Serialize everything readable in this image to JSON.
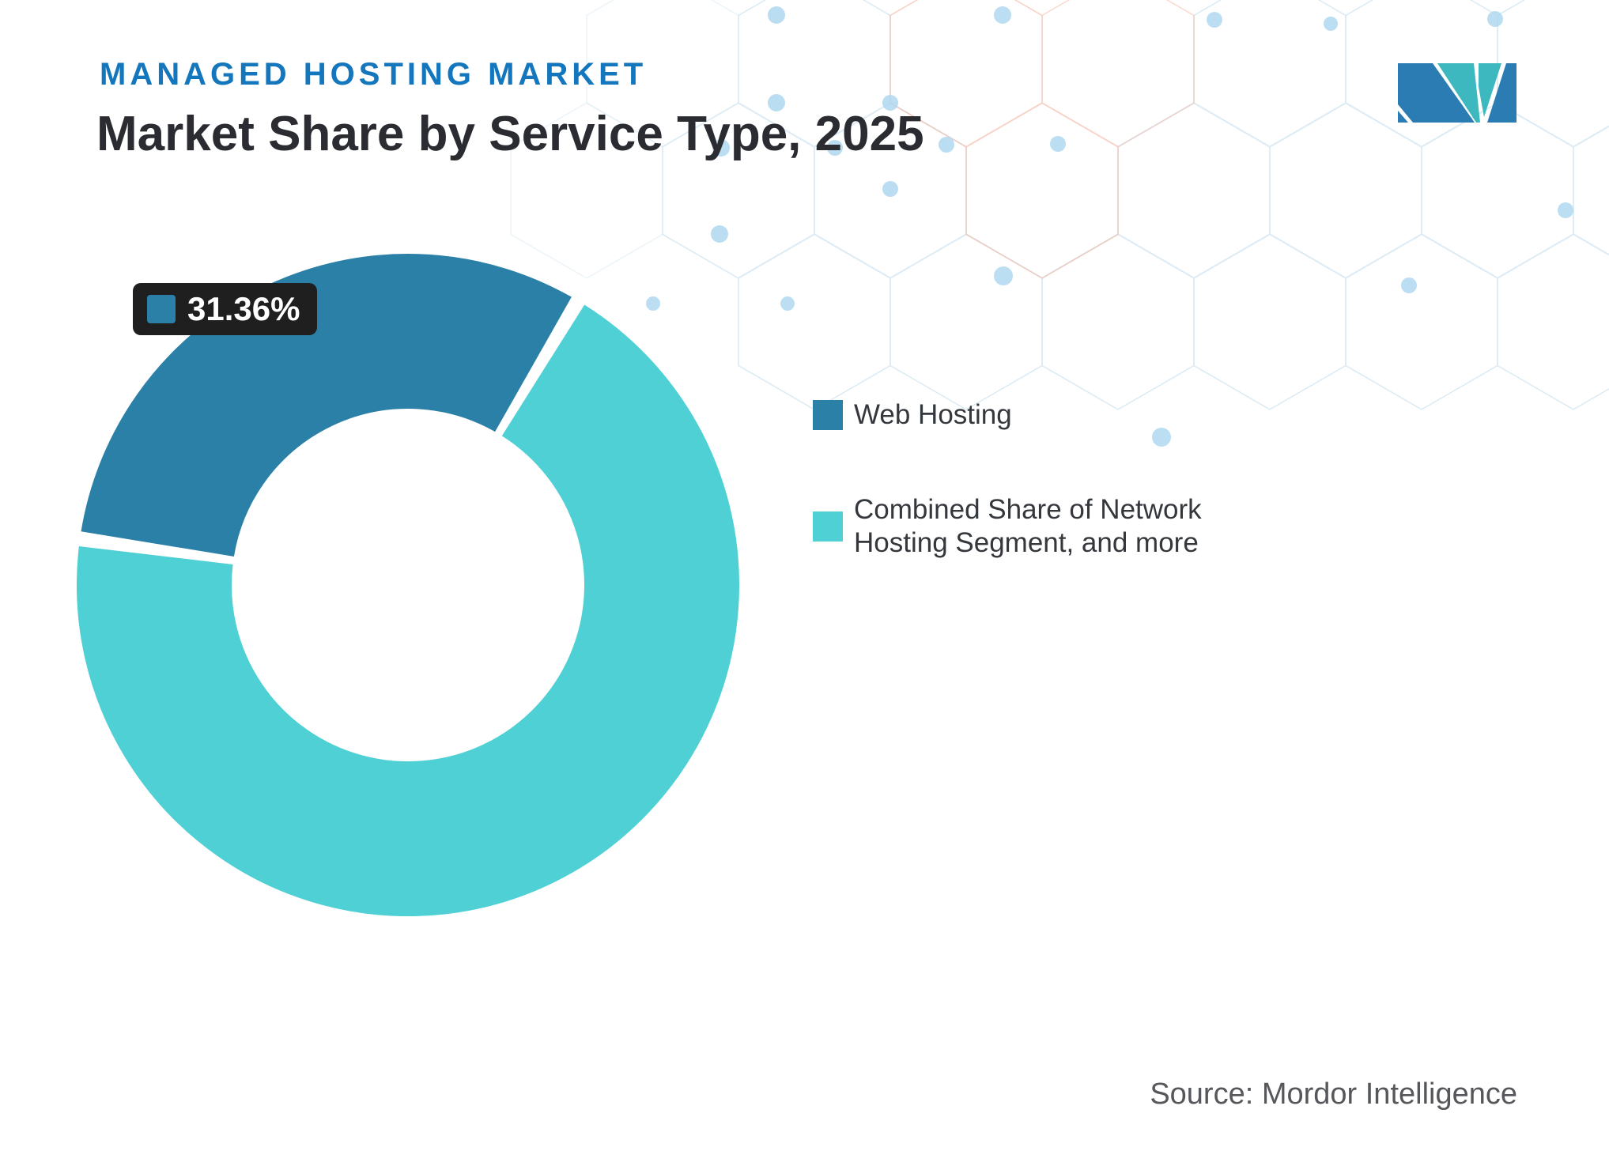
{
  "header": {
    "eyebrow": "MANAGED HOSTING MARKET",
    "title": "Market Share by Service Type, 2025"
  },
  "chart_data": {
    "type": "pie",
    "donut": true,
    "title": "Market Share by Service Type, 2025",
    "start_angle_deg": 278,
    "legend_position": "right",
    "series": [
      {
        "label": "Web Hosting",
        "value": 31.36,
        "display": "31.36%",
        "color": "#2A80A7"
      },
      {
        "label": "Combined Share of Network Hosting Segment, and more",
        "value": 68.64,
        "color": "#4FD0D5"
      }
    ],
    "annotations": [
      {
        "text": "31.36%",
        "target": "Web Hosting"
      }
    ]
  },
  "tooltip": {
    "value": "31.36%"
  },
  "footer": {
    "source_label": "Source: Mordor Intelligence"
  },
  "colors": {
    "eyebrow_blue": "#1477BD",
    "title_dark": "#2B2C31",
    "tooltip_bg": "#1F1F1F",
    "legend_text": "#34373C",
    "source_gray": "#56575A",
    "logo_blue": "#2B7CB3",
    "logo_teal": "#3EB8BF",
    "pattern_blue": "#D9E9F3",
    "pattern_dot": "#AFD8F0",
    "pattern_orange": "#F4B7A4"
  }
}
